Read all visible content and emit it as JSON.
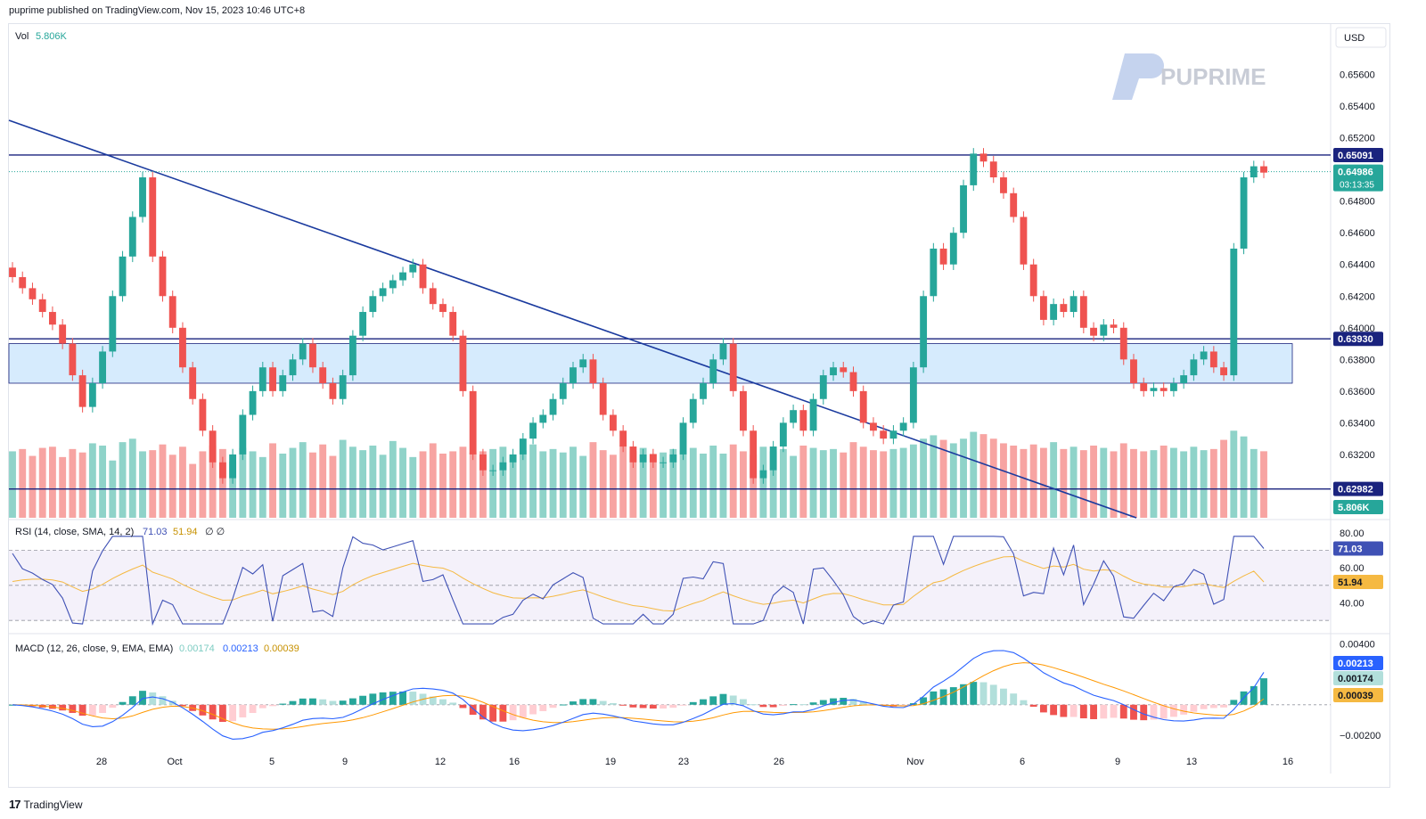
{
  "header": {
    "published": "puprime published on TradingView.com, Nov 15, 2023 10:46 UTC+8"
  },
  "footer": {
    "brand": "TradingView",
    "logo_icon": "tradingview-logo-icon"
  },
  "watermark": {
    "text": "PUPRIME",
    "icon": "puprime-logo-icon"
  },
  "currency": "USD",
  "colors": {
    "up": "#26a69a",
    "down": "#ef5350",
    "vol_up": "#8fd3c9",
    "vol_down": "#f7a4a2",
    "line": "#1a237e",
    "zone": "#bbdefb",
    "rsi": "#3f51b5",
    "rsi_sma": "#f5b942",
    "macd": "#2962ff",
    "signal": "#ff9800",
    "price_line": "#26a69a"
  },
  "volume": {
    "label": "Vol",
    "value": "5.806K",
    "badge": "5.806K"
  },
  "price_axis": [
    "0.65600",
    "0.65400",
    "0.65200",
    "0.65091",
    "0.64986",
    "0.64800",
    "0.64600",
    "0.64400",
    "0.64200",
    "0.64000",
    "0.63930",
    "0.63800",
    "0.63600",
    "0.63400",
    "0.63200",
    "0.62982"
  ],
  "price_badges": {
    "top_line": "0.65091",
    "current": "0.64986",
    "countdown": "03:13:35",
    "mid_line": "0.63930",
    "low_line": "0.62982"
  },
  "rsi": {
    "label": "RSI (14, close, SMA, 14, 2)",
    "value": "71.03",
    "sma": "51.94",
    "extra": "∅ ∅",
    "axis": [
      "80.00",
      "60.00",
      "40.00"
    ]
  },
  "macd": {
    "label": "MACD (12, 26, close, 9, EMA, EMA)",
    "hist": "0.00174",
    "macd": "0.00213",
    "signal": "0.00039",
    "axis": [
      "0.00400",
      "0.00213",
      "0.00174",
      "0.00039",
      "−0.00200"
    ]
  },
  "time_axis": [
    "28",
    "Oct",
    "5",
    "9",
    "12",
    "16",
    "19",
    "23",
    "26",
    "Nov",
    "6",
    "9",
    "13",
    "16"
  ],
  "chart_data": {
    "type": "candlestick",
    "symbol_quote": "USD",
    "ylim": [
      0.628,
      0.658
    ],
    "horizontal_lines": [
      0.65091,
      0.6393,
      0.62982
    ],
    "support_zone": [
      0.6365,
      0.639
    ],
    "trendline": {
      "from": 0.6531,
      "to": 0.628
    },
    "last_price": 0.64986,
    "closes": [
      0.6432,
      0.6425,
      0.6418,
      0.641,
      0.6402,
      0.639,
      0.637,
      0.635,
      0.6365,
      0.6385,
      0.642,
      0.6445,
      0.647,
      0.6495,
      0.6445,
      0.642,
      0.64,
      0.6375,
      0.6355,
      0.6335,
      0.6315,
      0.6305,
      0.632,
      0.6345,
      0.636,
      0.6375,
      0.636,
      0.637,
      0.638,
      0.639,
      0.6375,
      0.6365,
      0.6355,
      0.637,
      0.6395,
      0.641,
      0.642,
      0.6425,
      0.643,
      0.6435,
      0.644,
      0.6425,
      0.6415,
      0.641,
      0.6395,
      0.636,
      0.632,
      0.631,
      0.631,
      0.6315,
      0.632,
      0.633,
      0.634,
      0.6345,
      0.6355,
      0.6365,
      0.6375,
      0.638,
      0.6365,
      0.6345,
      0.6335,
      0.6325,
      0.6315,
      0.632,
      0.6315,
      0.6315,
      0.632,
      0.634,
      0.6355,
      0.6365,
      0.638,
      0.639,
      0.636,
      0.6335,
      0.6305,
      0.631,
      0.6325,
      0.634,
      0.6348,
      0.6335,
      0.6355,
      0.637,
      0.6375,
      0.6372,
      0.636,
      0.634,
      0.6335,
      0.633,
      0.6335,
      0.634,
      0.6375,
      0.642,
      0.645,
      0.644,
      0.646,
      0.649,
      0.651,
      0.6505,
      0.6495,
      0.6485,
      0.647,
      0.644,
      0.642,
      0.6405,
      0.6415,
      0.641,
      0.642,
      0.64,
      0.6395,
      0.6402,
      0.64,
      0.638,
      0.6365,
      0.636,
      0.6362,
      0.636,
      0.6365,
      0.637,
      0.638,
      0.6385,
      0.6375,
      0.637,
      0.645,
      0.6495,
      0.6502,
      0.6498
    ],
    "volume": [
      5.8,
      6.0,
      5.4,
      6.1,
      6.2,
      5.3,
      6.0,
      5.7,
      6.5,
      6.3,
      5.0,
      6.6,
      6.9,
      5.8,
      5.9,
      6.4,
      5.5,
      6.2,
      4.7,
      5.8,
      6.3,
      6.0,
      4.9,
      6.1,
      5.8,
      5.3,
      6.5,
      5.6,
      6.1,
      6.6,
      5.7,
      6.4,
      5.4,
      6.8,
      6.2,
      5.9,
      6.3,
      5.5,
      6.7,
      6.1,
      5.3,
      5.8,
      6.5,
      5.6,
      5.8,
      6.2,
      5.7,
      5.8,
      6.0,
      6.2,
      5.5,
      5.9,
      6.4,
      5.8,
      6.0,
      5.7,
      6.2,
      5.4,
      6.6,
      5.9,
      5.5,
      6.3,
      5.8,
      6.1,
      5.6,
      5.7,
      6.0,
      5.9,
      6.1,
      5.6,
      6.3,
      5.6,
      6.4,
      5.8,
      5.5,
      6.2,
      5.8,
      6.0,
      5.4,
      6.3,
      6.1,
      5.9,
      6.0,
      5.7,
      6.6,
      6.2,
      5.9,
      5.8,
      6.0,
      6.1,
      6.4,
      6.9,
      7.2,
      6.8,
      6.5,
      6.9,
      7.5,
      7.3,
      6.9,
      6.5,
      6.3,
      6.0,
      6.4,
      6.1,
      6.6,
      6.0,
      6.2,
      5.9,
      6.3,
      6.1,
      5.8,
      6.5,
      6.0,
      5.8,
      5.9,
      6.3,
      6.1,
      5.8,
      6.2,
      5.9,
      6.0,
      6.8,
      7.6,
      7.1,
      6.0,
      5.806
    ],
    "rsi": {
      "value": 71.03,
      "sma": 51.94,
      "ylim": [
        25,
        85
      ]
    },
    "macd": {
      "macd": 0.00213,
      "signal": 0.00039,
      "histogram": 0.00174,
      "ylim": [
        -0.003,
        0.0045
      ]
    }
  }
}
